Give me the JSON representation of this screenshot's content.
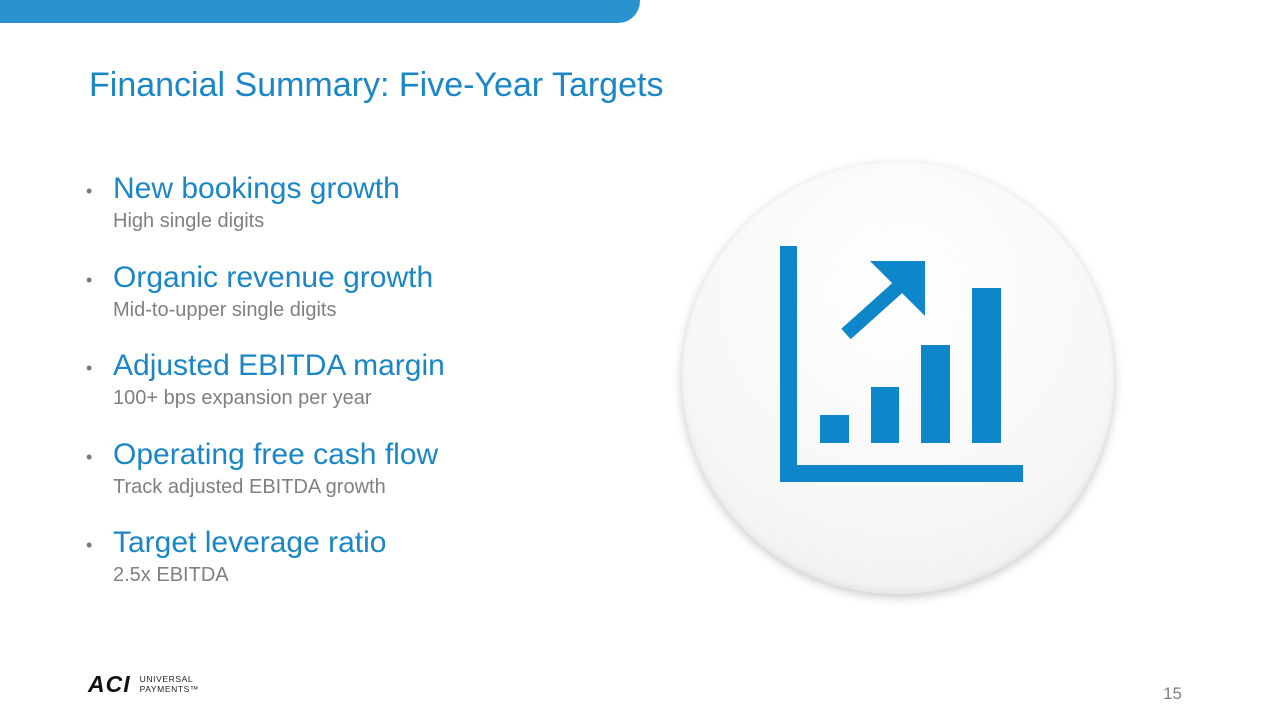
{
  "slide": {
    "title": "Financial Summary: Five-Year Targets",
    "page_number": "15",
    "accent_color": "#1b86c6",
    "icon_color": "#0d87c9"
  },
  "bullets": [
    {
      "heading": "New bookings growth",
      "detail": "High single digits"
    },
    {
      "heading": "Organic revenue growth",
      "detail": "Mid-to-upper single digits"
    },
    {
      "heading": "Adjusted EBITDA margin",
      "detail": "100+ bps expansion per year"
    },
    {
      "heading": "Operating free cash flow",
      "detail": "Track adjusted EBITDA growth"
    },
    {
      "heading": "Target leverage ratio",
      "detail": "2.5x EBITDA"
    }
  ],
  "illustration": {
    "icon": "bar-chart-growth-arrow-icon"
  },
  "logo": {
    "mark": "ACI",
    "line1": "UNIVERSAL",
    "line2": "PAYMENTS™"
  }
}
